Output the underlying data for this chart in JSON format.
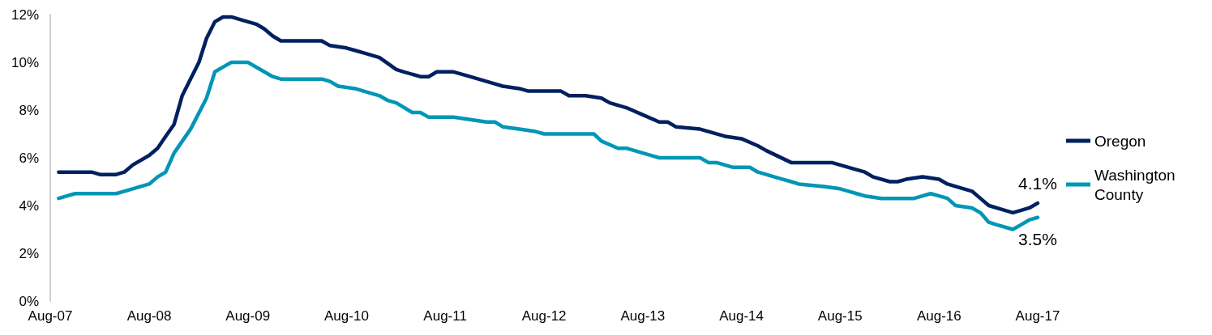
{
  "chart_data": {
    "type": "line",
    "xlim": [
      "2007-08",
      "2017-08"
    ],
    "xticks": [
      {
        "value": "2007-08",
        "label": "Aug-07"
      },
      {
        "value": "2008-08",
        "label": "Aug-08"
      },
      {
        "value": "2009-08",
        "label": "Aug-09"
      },
      {
        "value": "2010-08",
        "label": "Aug-10"
      },
      {
        "value": "2011-08",
        "label": "Aug-11"
      },
      {
        "value": "2012-08",
        "label": "Aug-12"
      },
      {
        "value": "2013-08",
        "label": "Aug-13"
      },
      {
        "value": "2014-08",
        "label": "Aug-14"
      },
      {
        "value": "2015-08",
        "label": "Aug-15"
      },
      {
        "value": "2016-08",
        "label": "Aug-16"
      },
      {
        "value": "2017-08",
        "label": "Aug-17"
      }
    ],
    "ylim": [
      0,
      12
    ],
    "yticks": [
      {
        "value": 0,
        "label": "0%"
      },
      {
        "value": 2,
        "label": "2%"
      },
      {
        "value": 4,
        "label": "4%"
      },
      {
        "value": 6,
        "label": "6%"
      },
      {
        "value": 8,
        "label": "8%"
      },
      {
        "value": 10,
        "label": "10%"
      },
      {
        "value": 12,
        "label": "12%"
      }
    ],
    "grid": false,
    "legend": "right",
    "marker": "none",
    "line_style": "solid",
    "series": [
      {
        "name": "Oregon",
        "color": "#002060",
        "x": [
          "2007-09",
          "2007-11",
          "2008-01",
          "2008-02",
          "2008-04",
          "2008-05",
          "2008-06",
          "2008-08",
          "2008-09",
          "2008-10",
          "2008-11",
          "2008-12",
          "2009-02",
          "2009-03",
          "2009-04",
          "2009-05",
          "2009-06",
          "2009-07",
          "2009-09",
          "2009-10",
          "2009-11",
          "2009-12",
          "2010-04",
          "2010-05",
          "2010-06",
          "2010-08",
          "2010-09",
          "2010-10",
          "2010-12",
          "2011-02",
          "2011-03",
          "2011-05",
          "2011-06",
          "2011-07",
          "2011-09",
          "2011-11",
          "2012-01",
          "2012-02",
          "2012-03",
          "2012-05",
          "2012-06",
          "2012-08",
          "2012-10",
          "2012-11",
          "2013-01",
          "2013-03",
          "2013-04",
          "2013-06",
          "2013-08",
          "2013-10",
          "2013-11",
          "2013-12",
          "2014-03",
          "2014-06",
          "2014-08",
          "2014-10",
          "2014-11",
          "2015-02",
          "2015-04",
          "2015-07",
          "2015-09",
          "2015-11",
          "2015-12",
          "2016-02",
          "2016-03",
          "2016-04",
          "2016-06",
          "2016-08",
          "2016-09",
          "2016-10",
          "2016-12",
          "2017-01",
          "2017-02",
          "2017-04",
          "2017-05",
          "2017-06",
          "2017-07",
          "2017-08"
        ],
        "values": [
          5.4,
          5.4,
          5.4,
          5.3,
          5.3,
          5.4,
          5.7,
          6.1,
          6.4,
          6.9,
          7.4,
          8.6,
          10.0,
          11.0,
          11.7,
          11.9,
          11.9,
          11.8,
          11.6,
          11.4,
          11.1,
          10.9,
          10.9,
          10.9,
          10.7,
          10.6,
          10.5,
          10.4,
          10.2,
          9.7,
          9.6,
          9.4,
          9.4,
          9.6,
          9.6,
          9.4,
          9.2,
          9.1,
          9.0,
          8.9,
          8.8,
          8.8,
          8.8,
          8.6,
          8.6,
          8.5,
          8.3,
          8.1,
          7.8,
          7.5,
          7.5,
          7.3,
          7.2,
          6.9,
          6.8,
          6.5,
          6.3,
          5.8,
          5.8,
          5.8,
          5.6,
          5.4,
          5.2,
          5.0,
          5.0,
          5.1,
          5.2,
          5.1,
          4.9,
          4.8,
          4.6,
          4.3,
          4.0,
          3.8,
          3.7,
          3.8,
          3.9,
          4.1
        ]
      },
      {
        "name": "Washington County",
        "color": "#0096b6",
        "x": [
          "2007-09",
          "2007-11",
          "2008-04",
          "2008-05",
          "2008-06",
          "2008-08",
          "2008-09",
          "2008-10",
          "2008-11",
          "2009-01",
          "2009-03",
          "2009-04",
          "2009-05",
          "2009-06",
          "2009-08",
          "2009-10",
          "2009-11",
          "2009-12",
          "2010-05",
          "2010-06",
          "2010-07",
          "2010-09",
          "2010-10",
          "2010-12",
          "2011-01",
          "2011-02",
          "2011-04",
          "2011-05",
          "2011-06",
          "2011-09",
          "2011-11",
          "2012-01",
          "2012-02",
          "2012-03",
          "2012-05",
          "2012-07",
          "2012-08",
          "2012-10",
          "2012-12",
          "2013-02",
          "2013-03",
          "2013-05",
          "2013-06",
          "2013-08",
          "2013-09",
          "2013-10",
          "2013-12",
          "2014-01",
          "2014-03",
          "2014-04",
          "2014-05",
          "2014-07",
          "2014-09",
          "2014-10",
          "2014-11",
          "2014-12",
          "2015-01",
          "2015-02",
          "2015-03",
          "2015-06",
          "2015-08",
          "2015-09",
          "2015-10",
          "2015-11",
          "2016-01",
          "2016-05",
          "2016-06",
          "2016-07",
          "2016-08",
          "2016-09",
          "2016-10",
          "2016-12",
          "2017-01",
          "2017-02",
          "2017-03",
          "2017-05",
          "2017-06",
          "2017-07",
          "2017-08"
        ],
        "values": [
          4.3,
          4.5,
          4.5,
          4.6,
          4.7,
          4.9,
          5.2,
          5.4,
          6.2,
          7.2,
          8.5,
          9.6,
          9.8,
          10.0,
          10.0,
          9.6,
          9.4,
          9.3,
          9.3,
          9.2,
          9.0,
          8.9,
          8.8,
          8.6,
          8.4,
          8.3,
          7.9,
          7.9,
          7.7,
          7.7,
          7.6,
          7.5,
          7.5,
          7.3,
          7.2,
          7.1,
          7.0,
          7.0,
          7.0,
          7.0,
          6.7,
          6.4,
          6.4,
          6.2,
          6.1,
          6.0,
          6.0,
          6.0,
          6.0,
          5.8,
          5.8,
          5.6,
          5.6,
          5.4,
          5.3,
          5.2,
          5.1,
          5.0,
          4.9,
          4.8,
          4.7,
          4.6,
          4.5,
          4.4,
          4.3,
          4.3,
          4.4,
          4.5,
          4.4,
          4.3,
          4.0,
          3.9,
          3.7,
          3.3,
          3.2,
          3.0,
          3.2,
          3.4,
          3.5
        ]
      }
    ],
    "annotations": [
      {
        "text": "4.1%",
        "x": "2017-08",
        "y": 4.1
      },
      {
        "text": "3.5%",
        "x": "2017-08",
        "y": 3.5
      }
    ]
  }
}
